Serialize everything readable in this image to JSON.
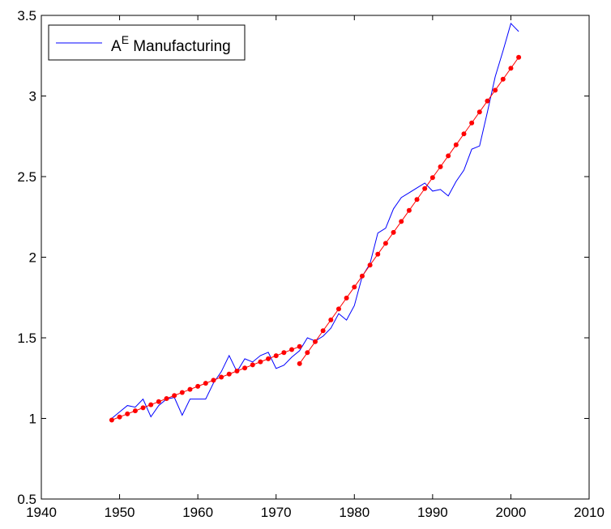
{
  "chart_data": {
    "type": "line",
    "title": "",
    "xlabel": "",
    "ylabel": "",
    "xlim": [
      1940,
      2010
    ],
    "ylim": [
      0.5,
      3.5
    ],
    "xticks": [
      1940,
      1950,
      1960,
      1970,
      1980,
      1990,
      2000,
      2010
    ],
    "yticks": [
      0.5,
      1,
      1.5,
      2,
      2.5,
      3,
      3.5
    ],
    "grid": false,
    "legend": {
      "placement": "top-left",
      "label_base": "A",
      "label_sup": "E",
      "label_rest": " Manufacturing"
    },
    "series": [
      {
        "name": "A^E Manufacturing",
        "color": "#0000ff",
        "marker": "none",
        "x": [
          1949,
          1950,
          1951,
          1952,
          1953,
          1954,
          1955,
          1956,
          1957,
          1958,
          1959,
          1960,
          1961,
          1962,
          1963,
          1964,
          1965,
          1966,
          1967,
          1968,
          1969,
          1970,
          1971,
          1972,
          1973,
          1974,
          1975,
          1976,
          1977,
          1978,
          1979,
          1980,
          1981,
          1982,
          1983,
          1984,
          1985,
          1986,
          1987,
          1988,
          1989,
          1990,
          1991,
          1992,
          1993,
          1994,
          1995,
          1996,
          1997,
          1998,
          1999,
          2000,
          2001
        ],
        "y": [
          1.0,
          1.04,
          1.08,
          1.07,
          1.12,
          1.01,
          1.08,
          1.12,
          1.13,
          1.02,
          1.12,
          1.12,
          1.12,
          1.22,
          1.29,
          1.39,
          1.29,
          1.37,
          1.35,
          1.39,
          1.41,
          1.31,
          1.33,
          1.38,
          1.42,
          1.5,
          1.48,
          1.51,
          1.56,
          1.65,
          1.61,
          1.7,
          1.88,
          1.96,
          2.15,
          2.18,
          2.3,
          2.37,
          2.4,
          2.43,
          2.46,
          2.41,
          2.42,
          2.38,
          2.47,
          2.54,
          2.67,
          2.69,
          2.9,
          3.12,
          3.28,
          3.45,
          3.4
        ]
      },
      {
        "name": "",
        "color": "#ff0000",
        "marker": "dot",
        "x": [
          1949,
          1950,
          1951,
          1952,
          1953,
          1954,
          1955,
          1956,
          1957,
          1958,
          1959,
          1960,
          1961,
          1962,
          1963,
          1964,
          1965,
          1966,
          1967,
          1968,
          1969,
          1970,
          1971,
          1972,
          1973
        ],
        "y": [
          0.99,
          1.009,
          1.028,
          1.047,
          1.066,
          1.085,
          1.104,
          1.123,
          1.142,
          1.161,
          1.18,
          1.199,
          1.218,
          1.237,
          1.256,
          1.275,
          1.294,
          1.313,
          1.332,
          1.351,
          1.37,
          1.389,
          1.408,
          1.427,
          1.446
        ]
      },
      {
        "name": "",
        "color": "#ff0000",
        "marker": "dot",
        "x": [
          1973,
          1974,
          1975,
          1976,
          1977,
          1978,
          1979,
          1980,
          1981,
          1982,
          1983,
          1984,
          1985,
          1986,
          1987,
          1988,
          1989,
          1990,
          1991,
          1992,
          1993,
          1994,
          1995,
          1996,
          1997,
          1998,
          1999,
          2000,
          2001
        ],
        "y": [
          1.34,
          1.408,
          1.476,
          1.544,
          1.611,
          1.679,
          1.747,
          1.815,
          1.883,
          1.951,
          2.019,
          2.086,
          2.154,
          2.222,
          2.29,
          2.358,
          2.426,
          2.494,
          2.561,
          2.629,
          2.697,
          2.765,
          2.833,
          2.901,
          2.969,
          3.036,
          3.104,
          3.172,
          3.24
        ]
      }
    ]
  }
}
